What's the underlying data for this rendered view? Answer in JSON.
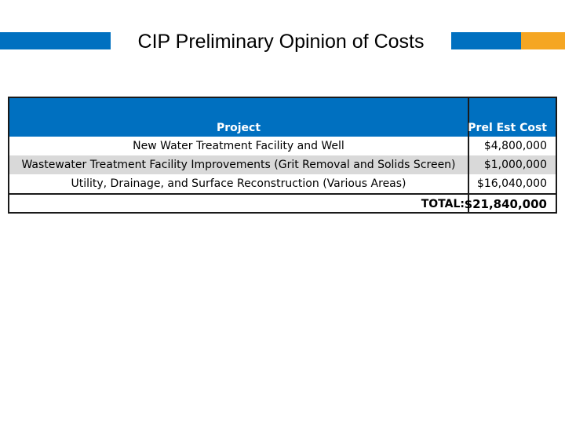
{
  "slide": {
    "title": "CIP Preliminary Opinion of Costs"
  },
  "colors": {
    "accent_blue": "#0070c0",
    "accent_gold": "#f5a623",
    "row_shade": "#d9d9d9"
  },
  "table": {
    "headers": [
      "Project",
      "Prel Est Cost"
    ],
    "rows": [
      {
        "project": "New Water Treatment Facility and Well",
        "cost": "$4,800,000"
      },
      {
        "project": "Wastewater Treatment Facility Improvements (Grit Removal and Solids Screen)",
        "cost": "$1,000,000"
      },
      {
        "project": "Utility, Drainage, and Surface Reconstruction (Various Areas)",
        "cost": "$16,040,000"
      }
    ],
    "total_label": "TOTAL:",
    "total_value": "$21,840,000"
  }
}
